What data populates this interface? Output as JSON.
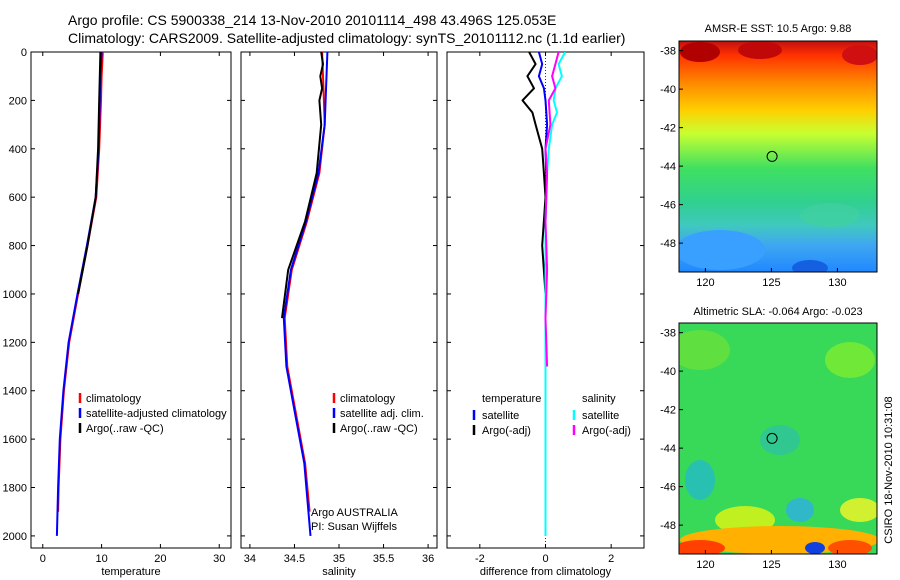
{
  "header": {
    "line1": "Argo profile: CS 5900338_214 13-Nov-2010 20101114_498 43.496S 125.053E",
    "line2": "Climatology: CARS2009. Satellite-adjusted climatology: synTS_20101112.nc (1.1d earlier)"
  },
  "colors": {
    "climatology": "#ff0000",
    "satellite": "#0000ff",
    "argo": "#000000",
    "cyan": "#00ffff",
    "magenta": "#ff00ff"
  },
  "chart_data": [
    {
      "type": "line",
      "xlabel": "temperature",
      "xlim": [
        -2,
        32
      ],
      "ylim": [
        2050,
        0
      ],
      "xticks": [
        "0",
        "10",
        "20",
        "30"
      ],
      "xtick_values": [
        0,
        10,
        20,
        30
      ],
      "yticks": [
        "0",
        "200",
        "400",
        "600",
        "800",
        "1000",
        "1200",
        "1400",
        "1600",
        "1800",
        "2000"
      ],
      "ytick_values": [
        0,
        200,
        400,
        600,
        800,
        1000,
        1200,
        1400,
        1600,
        1800,
        2000
      ],
      "legend": [
        "climatology",
        "satellite-adjusted climatology",
        "Argo(..raw -QC)"
      ],
      "series": [
        {
          "name": "climatology",
          "color": "#ff0000",
          "depth": [
            0,
            100,
            200,
            400,
            600,
            800,
            1000,
            1200,
            1400,
            1600,
            1800,
            1900
          ],
          "values": [
            10.2,
            10.0,
            9.9,
            9.6,
            9.1,
            7.6,
            6.0,
            4.5,
            3.6,
            3.0,
            2.7,
            2.6
          ]
        },
        {
          "name": "satellite-adjusted climatology",
          "color": "#0000ff",
          "depth": [
            0,
            100,
            200,
            400,
            600,
            800,
            1000,
            1200,
            1400,
            1600,
            1800,
            2000
          ],
          "values": [
            10.0,
            9.8,
            9.7,
            9.5,
            9.0,
            7.5,
            5.9,
            4.4,
            3.5,
            2.9,
            2.6,
            2.4
          ]
        },
        {
          "name": "Argo(..raw -QC)",
          "color": "#000000",
          "depth": [
            0,
            100,
            200,
            400,
            600,
            800,
            1000
          ],
          "values": [
            9.8,
            9.7,
            9.6,
            9.4,
            9.0,
            7.6,
            6.0
          ]
        }
      ]
    },
    {
      "type": "line",
      "xlabel": "salinity",
      "xlim": [
        33.9,
        36.1
      ],
      "ylim": [
        2050,
        0
      ],
      "xticks": [
        "34",
        "34.5",
        "35",
        "35.5",
        "36"
      ],
      "xtick_values": [
        34,
        34.5,
        35,
        35.5,
        36
      ],
      "legend": [
        "climatology",
        "satellite adj. clim.",
        "Argo(..raw -QC)"
      ],
      "annotation": [
        "Argo AUSTRALIA",
        "PI: Susan Wijffels"
      ],
      "series": [
        {
          "name": "climatology",
          "color": "#ff0000",
          "depth": [
            0,
            100,
            200,
            300,
            500,
            700,
            900,
            1100,
            1300,
            1500,
            1700,
            1900
          ],
          "values": [
            34.81,
            34.82,
            34.83,
            34.84,
            34.78,
            34.64,
            34.47,
            34.39,
            34.42,
            34.52,
            34.62,
            34.67
          ]
        },
        {
          "name": "satellite adj. clim.",
          "color": "#0000ff",
          "depth": [
            0,
            100,
            200,
            300,
            500,
            700,
            900,
            1100,
            1300,
            1500,
            1700,
            2000
          ],
          "values": [
            34.87,
            34.86,
            34.85,
            34.84,
            34.77,
            34.63,
            34.46,
            34.38,
            34.41,
            34.51,
            34.61,
            34.68
          ]
        },
        {
          "name": "Argo(..raw -QC)",
          "color": "#000000",
          "depth": [
            0,
            50,
            100,
            150,
            200,
            300,
            500,
            700,
            900,
            1100
          ],
          "values": [
            34.8,
            34.82,
            34.79,
            34.81,
            34.78,
            34.8,
            34.75,
            34.62,
            34.43,
            34.36
          ]
        }
      ]
    },
    {
      "type": "line",
      "xlabel": "difference from climatology",
      "xlim": [
        -3,
        3
      ],
      "ylim": [
        2050,
        0
      ],
      "xticks": [
        "-2",
        "0",
        "2"
      ],
      "xtick_values": [
        -2,
        0,
        2
      ],
      "legend_titles": [
        "temperature",
        "salinity"
      ],
      "legend": [
        "satellite",
        "Argo(-adj)",
        "satellite",
        "Argo(-adj)"
      ],
      "series": [
        {
          "name": "temperature satellite",
          "color": "#0000ff",
          "depth": [
            0,
            50,
            100,
            150,
            200,
            300,
            400,
            500,
            700,
            1000,
            1500,
            1900
          ],
          "values": [
            -0.2,
            -0.1,
            -0.2,
            -0.05,
            0.0,
            0.05,
            0.0,
            0.02,
            0.0,
            0.0,
            0.0,
            0.0
          ]
        },
        {
          "name": "temperature Argo(-adj)",
          "color": "#000000",
          "depth": [
            0,
            50,
            100,
            150,
            200,
            250,
            300,
            400,
            500,
            600,
            800,
            1000,
            1100
          ],
          "values": [
            -0.5,
            -0.3,
            -0.55,
            -0.35,
            -0.7,
            -0.4,
            -0.3,
            -0.1,
            -0.05,
            0.0,
            -0.1,
            0.0,
            0.0
          ]
        },
        {
          "name": "salinity satellite",
          "color": "#00ffff",
          "depth": [
            0,
            50,
            100,
            150,
            200,
            250,
            300,
            400,
            500,
            700,
            1000,
            1500,
            2000
          ],
          "values": [
            0.6,
            0.4,
            0.5,
            0.3,
            0.25,
            0.35,
            0.2,
            0.1,
            0.05,
            0.0,
            0.0,
            0.0,
            0.0
          ]
        },
        {
          "name": "salinity Argo(-adj)",
          "color": "#ff00ff",
          "depth": [
            0,
            50,
            100,
            150,
            200,
            300,
            400,
            500,
            700,
            900,
            1100,
            1300
          ],
          "values": [
            0.4,
            0.3,
            0.2,
            0.3,
            0.1,
            0.15,
            0.0,
            0.05,
            0.0,
            0.05,
            0.0,
            0.05
          ]
        }
      ]
    },
    {
      "type": "heatmap",
      "title": "AMSR-E SST: 10.5 Argo: 9.88",
      "xlim": [
        118,
        133
      ],
      "ylim": [
        -49.5,
        -37.5
      ],
      "xticks": [
        "120",
        "125",
        "130"
      ],
      "xtick_values": [
        120,
        125,
        130
      ],
      "yticks": [
        "-38",
        "-40",
        "-42",
        "-44",
        "-46",
        "-48"
      ],
      "ytick_values": [
        -38,
        -40,
        -42,
        -44,
        -46,
        -48
      ],
      "marker": {
        "lon": 125.053,
        "lat": -43.496
      }
    },
    {
      "type": "heatmap",
      "title": "Altimetric SLA: -0.064 Argo: -0.023",
      "xlim": [
        118,
        133
      ],
      "ylim": [
        -49.5,
        -37.5
      ],
      "xticks": [
        "120",
        "125",
        "130"
      ],
      "xtick_values": [
        120,
        125,
        130
      ],
      "yticks": [
        "-38",
        "-40",
        "-42",
        "-44",
        "-46",
        "-48"
      ],
      "ytick_values": [
        -38,
        -40,
        -42,
        -44,
        -46,
        -48
      ],
      "marker": {
        "lon": 125.053,
        "lat": -43.496
      }
    }
  ],
  "footer": {
    "credit": "CSIRO 18-Nov-2010 10:31:08"
  }
}
